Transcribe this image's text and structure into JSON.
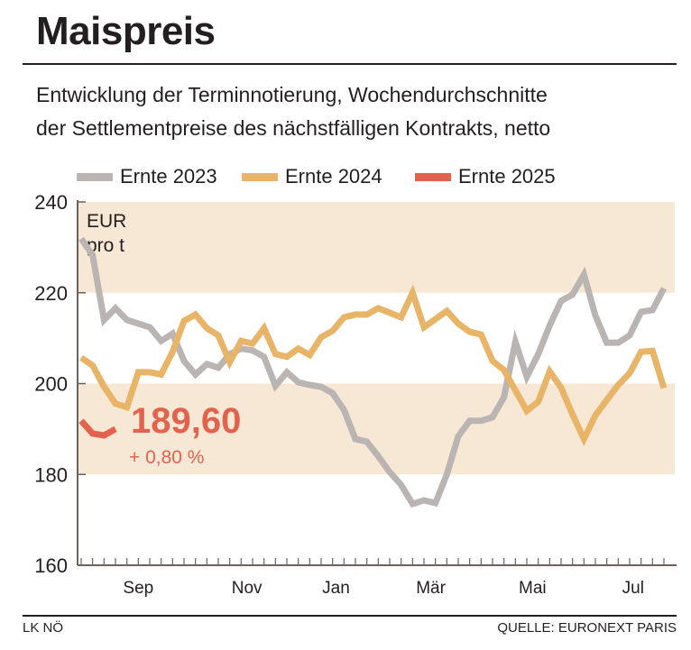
{
  "title": "Maispreis",
  "subtitle": [
    "Entwicklung der Terminnotierung, Wochendurchschnitte",
    "der Settlementpreise des nächstfälligen Kontrakts, netto"
  ],
  "footer": {
    "left": "LK NÖ",
    "right": "QUELLE: EURONEXT PARIS"
  },
  "chart_data": {
    "type": "line",
    "title": "Maispreis",
    "ylabel": "EUR pro t",
    "ylabel_lines": [
      "EUR",
      "pro t"
    ],
    "ylim": [
      160,
      240
    ],
    "yticks": [
      160,
      180,
      200,
      220,
      240
    ],
    "ytick_labels": [
      "160",
      "180",
      "200",
      "220",
      "240"
    ],
    "x_weeks": 52,
    "month_labels": [
      {
        "label": "Sep",
        "week": 5
      },
      {
        "label": "Nov",
        "week": 14.5
      },
      {
        "label": "Jan",
        "week": 22.3
      },
      {
        "label": "Mär",
        "week": 30.6
      },
      {
        "label": "Mai",
        "week": 39.5
      },
      {
        "label": "Jul",
        "week": 48.3
      }
    ],
    "bands": [
      [
        180,
        200
      ],
      [
        220,
        240
      ]
    ],
    "band_color": "#f7e7d5",
    "legend_placement": "top",
    "series": [
      {
        "name": "Ernte 2023",
        "color": "#bab5b2",
        "values": [
          231.9,
          228.3,
          214,
          216.6,
          214,
          213.2,
          212.4,
          209.4,
          211,
          205,
          202,
          204.3,
          203.5,
          206.5,
          207.7,
          207.3,
          205.9,
          199.5,
          202.5,
          200.3,
          199.7,
          199.3,
          197.9,
          194.2,
          187.8,
          187.2,
          184,
          180.5,
          177.7,
          173.5,
          174.3,
          173.7,
          180,
          188.4,
          191.8,
          191.8,
          192.6,
          197,
          209.2,
          201.5,
          206.5,
          212.8,
          218.2,
          219.6,
          224,
          215,
          209,
          209,
          210.6,
          215.8,
          216.2,
          221
        ]
      },
      {
        "name": "Ernte 2024",
        "color": "#e8b468",
        "values": [
          205.7,
          204,
          199.3,
          195.6,
          194.8,
          202.5,
          202.5,
          202,
          207,
          213.8,
          215.2,
          212.2,
          210.6,
          204.7,
          209.4,
          208.8,
          212.2,
          206.5,
          205.9,
          207.7,
          206.3,
          210.2,
          211.6,
          214.6,
          215.2,
          215.2,
          216.6,
          215.6,
          214.6,
          220,
          212.4,
          214.2,
          216,
          213.2,
          211.4,
          210.8,
          205,
          203,
          198.5,
          194,
          196,
          202.7,
          199.1,
          193.2,
          187.8,
          193,
          196.4,
          199.7,
          202.3,
          207,
          207.2,
          199
        ]
      },
      {
        "name": "Ernte 2025",
        "color": "#e2634d",
        "values": [
          191.8,
          189,
          188.6,
          190
        ]
      }
    ],
    "annotation": {
      "value": "189,60",
      "change": "+ 0,80 %"
    }
  }
}
